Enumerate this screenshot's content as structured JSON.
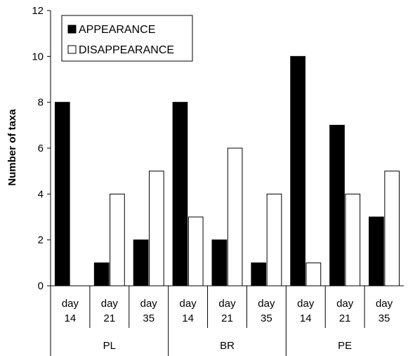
{
  "chart_data": {
    "type": "bar",
    "ylabel": "Number of taxa",
    "ylim": [
      0,
      12
    ],
    "yticks": [
      0,
      2,
      4,
      6,
      8,
      10,
      12
    ],
    "grid": false,
    "legend_position": "top-left",
    "groups": [
      {
        "label": "PL",
        "categories": [
          {
            "line1": "day",
            "line2": "14"
          },
          {
            "line1": "day",
            "line2": "21"
          },
          {
            "line1": "day",
            "line2": "35"
          }
        ]
      },
      {
        "label": "BR",
        "categories": [
          {
            "line1": "day",
            "line2": "14"
          },
          {
            "line1": "day",
            "line2": "21"
          },
          {
            "line1": "day",
            "line2": "35"
          }
        ]
      },
      {
        "label": "PE",
        "categories": [
          {
            "line1": "day",
            "line2": "14"
          },
          {
            "line1": "day",
            "line2": "21"
          },
          {
            "line1": "day",
            "line2": "35"
          }
        ]
      }
    ],
    "series": [
      {
        "name": "APPEARANCE",
        "color": "#000000",
        "values": [
          8,
          1,
          2,
          8,
          2,
          1,
          10,
          7,
          3
        ]
      },
      {
        "name": "DISAPPEARANCE",
        "color": "#ffffff",
        "values": [
          0,
          4,
          5,
          3,
          6,
          4,
          1,
          4,
          5
        ]
      }
    ]
  }
}
